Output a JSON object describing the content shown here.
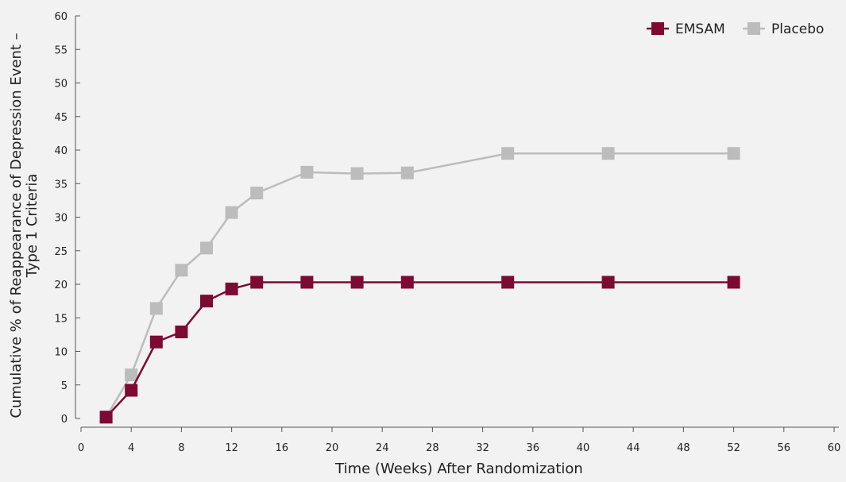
{
  "chart_data": {
    "type": "line",
    "title": "",
    "xlabel": "Time (Weeks) After Randomization",
    "ylabel_lines": [
      "Cumulative % of Reappearance of Depression Event –",
      "Type 1 Criteria"
    ],
    "xlim": [
      0,
      60
    ],
    "ylim": [
      0,
      60
    ],
    "x_ticks": [
      0,
      4,
      8,
      12,
      16,
      20,
      24,
      28,
      32,
      36,
      40,
      44,
      48,
      52,
      56,
      60
    ],
    "y_ticks": [
      0,
      5,
      10,
      15,
      20,
      25,
      30,
      35,
      40,
      45,
      50,
      55,
      60
    ],
    "grid": false,
    "legend_position": "top-right",
    "series": [
      {
        "name": "EMSAM",
        "color": "#7d0a33",
        "points": [
          [
            2,
            0.2
          ],
          [
            4,
            4.2
          ],
          [
            6,
            11.4
          ],
          [
            8,
            12.9
          ],
          [
            10,
            17.5
          ],
          [
            12,
            19.3
          ],
          [
            14,
            20.3
          ],
          [
            18,
            20.3
          ],
          [
            22,
            20.3
          ],
          [
            26,
            20.3
          ],
          [
            34,
            20.3
          ],
          [
            42,
            20.3
          ],
          [
            52,
            20.3
          ]
        ]
      },
      {
        "name": "Placebo",
        "color": "#bcbcbc",
        "points": [
          [
            2,
            0.2
          ],
          [
            4,
            6.5
          ],
          [
            6,
            16.4
          ],
          [
            8,
            22.1
          ],
          [
            10,
            25.4
          ],
          [
            12,
            30.7
          ],
          [
            14,
            33.6
          ],
          [
            18,
            36.7
          ],
          [
            22,
            36.5
          ],
          [
            26,
            36.6
          ],
          [
            34,
            39.5
          ],
          [
            42,
            39.5
          ],
          [
            52,
            39.5
          ]
        ]
      }
    ]
  }
}
